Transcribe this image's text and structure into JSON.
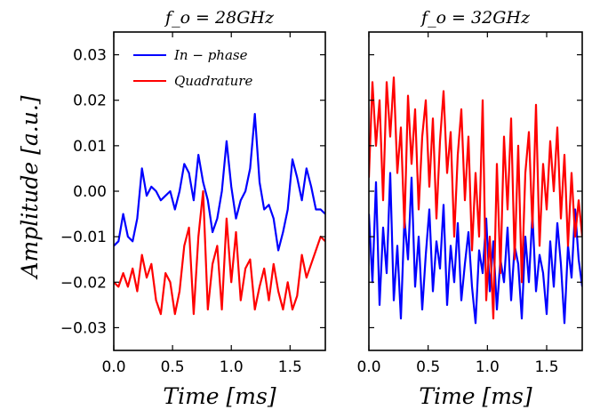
{
  "chart_data": [
    {
      "type": "line",
      "title": "f_o = 28GHz",
      "xlabel": "Time [ms]",
      "ylabel": "Amplitude [a.u.]",
      "xlim": [
        0.0,
        1.8
      ],
      "ylim": [
        -0.035,
        0.035
      ],
      "xticks": [
        "0.0",
        "0.5",
        "1.0",
        "1.5"
      ],
      "yticks": [
        "0.03",
        "0.02",
        "0.01",
        "0.00",
        "−0.01",
        "−0.02",
        "−0.03"
      ],
      "legend_position": "top-left",
      "series": [
        {
          "name": "In − phase",
          "color": "#0000ff",
          "x": [
            0.0,
            0.04,
            0.08,
            0.12,
            0.16,
            0.2,
            0.24,
            0.28,
            0.32,
            0.36,
            0.4,
            0.44,
            0.48,
            0.52,
            0.56,
            0.6,
            0.64,
            0.68,
            0.72,
            0.76,
            0.8,
            0.84,
            0.88,
            0.92,
            0.96,
            1.0,
            1.04,
            1.08,
            1.12,
            1.16,
            1.2,
            1.24,
            1.28,
            1.32,
            1.36,
            1.4,
            1.44,
            1.48,
            1.52,
            1.56,
            1.6,
            1.64,
            1.68,
            1.72,
            1.76,
            1.8
          ],
          "y": [
            -0.012,
            -0.011,
            -0.005,
            -0.01,
            -0.011,
            -0.006,
            0.005,
            -0.001,
            0.001,
            0.0,
            -0.002,
            -0.001,
            0.0,
            -0.004,
            0.0,
            0.006,
            0.004,
            -0.002,
            0.008,
            0.002,
            -0.002,
            -0.009,
            -0.006,
            0.0,
            0.011,
            0.001,
            -0.006,
            -0.002,
            0.0,
            0.005,
            0.017,
            0.002,
            -0.004,
            -0.003,
            -0.006,
            -0.013,
            -0.009,
            -0.004,
            0.007,
            0.003,
            -0.002,
            0.005,
            0.001,
            -0.004,
            -0.004,
            -0.005
          ],
          "note": "approximate trace"
        },
        {
          "name": "Quadrature",
          "color": "#ff0000",
          "x": [
            0.0,
            0.04,
            0.08,
            0.12,
            0.16,
            0.2,
            0.24,
            0.28,
            0.32,
            0.36,
            0.4,
            0.44,
            0.48,
            0.52,
            0.56,
            0.6,
            0.64,
            0.68,
            0.72,
            0.76,
            0.8,
            0.84,
            0.88,
            0.92,
            0.96,
            1.0,
            1.04,
            1.08,
            1.12,
            1.16,
            1.2,
            1.24,
            1.28,
            1.32,
            1.36,
            1.4,
            1.44,
            1.48,
            1.52,
            1.56,
            1.6,
            1.64,
            1.68,
            1.72,
            1.76,
            1.8
          ],
          "y": [
            -0.02,
            -0.021,
            -0.018,
            -0.021,
            -0.017,
            -0.022,
            -0.014,
            -0.019,
            -0.016,
            -0.024,
            -0.027,
            -0.018,
            -0.02,
            -0.027,
            -0.022,
            -0.012,
            -0.008,
            -0.027,
            -0.01,
            0.0,
            -0.026,
            -0.016,
            -0.012,
            -0.026,
            -0.006,
            -0.02,
            -0.009,
            -0.024,
            -0.017,
            -0.015,
            -0.026,
            -0.021,
            -0.017,
            -0.024,
            -0.016,
            -0.022,
            -0.026,
            -0.02,
            -0.026,
            -0.023,
            -0.014,
            -0.019,
            -0.016,
            -0.013,
            -0.01,
            -0.011
          ],
          "note": "approximate trace"
        }
      ]
    },
    {
      "type": "line",
      "title": "f_o = 32GHz",
      "xlabel": "Time [ms]",
      "ylabel": "",
      "xlim": [
        0.0,
        1.8
      ],
      "ylim": [
        -0.035,
        0.035
      ],
      "xticks": [
        "0.0",
        "0.5",
        "1.0",
        "1.5"
      ],
      "yticks_shown": false,
      "series": [
        {
          "name": "In − phase",
          "color": "#0000ff",
          "x": [
            0.0,
            0.03,
            0.06,
            0.09,
            0.12,
            0.15,
            0.18,
            0.21,
            0.24,
            0.27,
            0.3,
            0.33,
            0.36,
            0.39,
            0.42,
            0.45,
            0.48,
            0.51,
            0.54,
            0.57,
            0.6,
            0.63,
            0.66,
            0.69,
            0.72,
            0.75,
            0.78,
            0.81,
            0.84,
            0.87,
            0.9,
            0.93,
            0.96,
            0.99,
            1.02,
            1.05,
            1.08,
            1.11,
            1.14,
            1.17,
            1.2,
            1.23,
            1.26,
            1.29,
            1.32,
            1.35,
            1.38,
            1.41,
            1.44,
            1.47,
            1.5,
            1.53,
            1.56,
            1.59,
            1.62,
            1.65,
            1.68,
            1.71,
            1.74,
            1.77,
            1.8
          ],
          "y": [
            -0.005,
            -0.02,
            0.002,
            -0.025,
            -0.008,
            -0.018,
            0.004,
            -0.024,
            -0.012,
            -0.028,
            -0.006,
            -0.015,
            0.003,
            -0.021,
            -0.01,
            -0.026,
            -0.014,
            -0.004,
            -0.022,
            -0.011,
            -0.017,
            -0.003,
            -0.025,
            -0.012,
            -0.02,
            -0.007,
            -0.024,
            -0.016,
            -0.009,
            -0.021,
            -0.029,
            -0.013,
            -0.018,
            -0.006,
            -0.022,
            -0.011,
            -0.026,
            -0.015,
            -0.02,
            -0.008,
            -0.024,
            -0.012,
            -0.016,
            -0.028,
            -0.01,
            -0.02,
            -0.005,
            -0.022,
            -0.014,
            -0.018,
            -0.027,
            -0.011,
            -0.021,
            -0.007,
            -0.016,
            -0.029,
            -0.012,
            -0.019,
            -0.004,
            -0.015,
            -0.021
          ],
          "note": "approximate trace"
        },
        {
          "name": "Quadrature",
          "color": "#ff0000",
          "x": [
            0.0,
            0.03,
            0.06,
            0.09,
            0.12,
            0.15,
            0.18,
            0.21,
            0.24,
            0.27,
            0.3,
            0.33,
            0.36,
            0.39,
            0.42,
            0.45,
            0.48,
            0.51,
            0.54,
            0.57,
            0.6,
            0.63,
            0.66,
            0.69,
            0.72,
            0.75,
            0.78,
            0.81,
            0.84,
            0.87,
            0.9,
            0.93,
            0.96,
            0.99,
            1.02,
            1.05,
            1.08,
            1.11,
            1.14,
            1.17,
            1.2,
            1.23,
            1.26,
            1.29,
            1.32,
            1.35,
            1.38,
            1.41,
            1.44,
            1.47,
            1.5,
            1.53,
            1.56,
            1.59,
            1.62,
            1.65,
            1.68,
            1.71,
            1.74,
            1.77,
            1.8
          ],
          "y": [
            0.003,
            0.024,
            0.01,
            0.02,
            -0.002,
            0.024,
            0.012,
            0.025,
            0.004,
            0.014,
            -0.008,
            0.021,
            0.006,
            0.018,
            -0.004,
            0.012,
            0.02,
            0.001,
            0.016,
            -0.006,
            0.011,
            0.022,
            0.004,
            0.013,
            -0.01,
            0.008,
            0.018,
            -0.002,
            0.012,
            -0.013,
            0.004,
            -0.01,
            0.02,
            -0.024,
            -0.01,
            -0.028,
            0.006,
            -0.018,
            0.012,
            -0.004,
            0.016,
            -0.015,
            0.01,
            -0.02,
            0.004,
            0.013,
            -0.008,
            0.019,
            -0.012,
            0.006,
            -0.004,
            0.011,
            0.0,
            0.014,
            -0.006,
            0.008,
            -0.012,
            0.004,
            -0.01,
            -0.002,
            -0.01
          ],
          "note": "approximate trace"
        }
      ]
    }
  ]
}
